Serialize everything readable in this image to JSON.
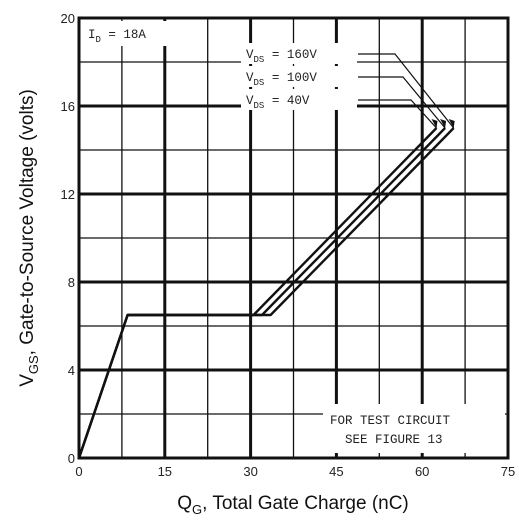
{
  "chart_data": {
    "type": "line",
    "title": "",
    "xlabel": {
      "main": "Q",
      "sub": "G",
      "rest": ", Total Gate Charge (nC)"
    },
    "ylabel": {
      "main": "V",
      "sub": "GS",
      "rest": ", Gate-to-Source Voltage (volts)"
    },
    "xlim": [
      0,
      75
    ],
    "ylim": [
      0,
      20
    ],
    "xticks": [
      0,
      15,
      30,
      45,
      60,
      75
    ],
    "yticks": [
      0,
      4,
      8,
      12,
      16,
      20
    ],
    "grid": true,
    "series": [
      {
        "name": "V_DS = 40V",
        "label": {
          "main": "V",
          "sub": "DS",
          "rest": " =  40V"
        },
        "points": [
          [
            0,
            0
          ],
          [
            8.5,
            6.5
          ],
          [
            30.5,
            6.5
          ],
          [
            62.5,
            15.0
          ]
        ]
      },
      {
        "name": "V_DS = 100V",
        "label": {
          "main": "V",
          "sub": "DS",
          "rest": " = 100V"
        },
        "points": [
          [
            0,
            0
          ],
          [
            8.5,
            6.5
          ],
          [
            32.0,
            6.5
          ],
          [
            64.0,
            15.0
          ]
        ]
      },
      {
        "name": "V_DS = 160V",
        "label": {
          "main": "V",
          "sub": "DS",
          "rest": " = 160V"
        },
        "points": [
          [
            0,
            0
          ],
          [
            8.5,
            6.5
          ],
          [
            33.5,
            6.5
          ],
          [
            65.5,
            15.0
          ]
        ]
      }
    ],
    "annotations": {
      "current": {
        "main": "I",
        "sub": "D",
        "rest": " = 18A"
      },
      "note_line1": "FOR TEST CIRCUIT",
      "note_line2": "SEE FIGURE 13"
    }
  }
}
